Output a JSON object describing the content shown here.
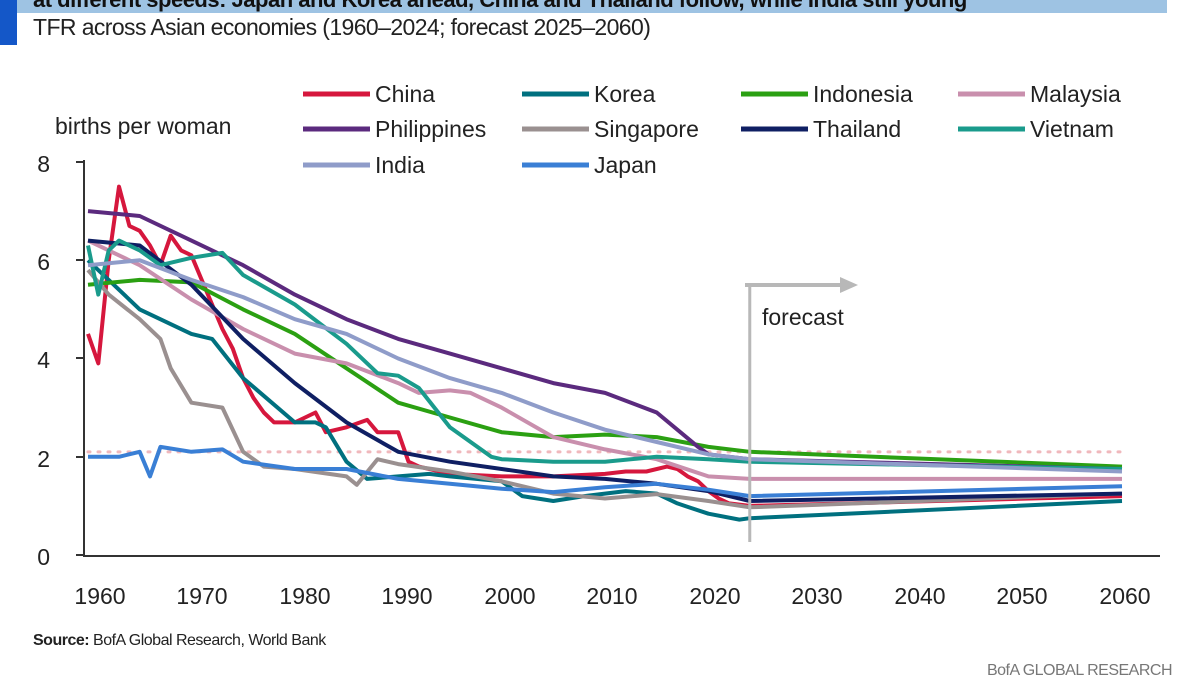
{
  "header": {
    "title": "at different speeds: Japan and Korea ahead, China and Thailand follow, while India still young",
    "subtitle": "TFR across Asian economies (1960–2024; forecast 2025–2060)"
  },
  "footer": {
    "source_label": "Source:",
    "source_text": " BofA Global Research, World Bank",
    "brand": "BofA GLOBAL RESEARCH"
  },
  "colors": {
    "accent_bar": "#1457c8",
    "title_band": "#9ec3e3"
  },
  "chart_data": {
    "type": "line",
    "ylabel": "births per woman",
    "xlim": [
      1960,
      2060
    ],
    "ylim": [
      0,
      8
    ],
    "x_ticks": [
      "1960",
      "1970",
      "1980",
      "1990",
      "2000",
      "2010",
      "2020",
      "2030",
      "2040",
      "2050",
      "2060"
    ],
    "y_ticks": [
      "0",
      "2",
      "4",
      "6",
      "8"
    ],
    "grid": false,
    "legend": "top",
    "annotation": {
      "text": "forecast",
      "x": 2024
    },
    "reference_line": {
      "y": 2.1,
      "style": "dotted",
      "color": "#f0b8bc"
    },
    "series": [
      {
        "name": "China",
        "color": "#d6173d",
        "points": [
          [
            1960,
            4.5
          ],
          [
            1961,
            3.9
          ],
          [
            1962,
            6.0
          ],
          [
            1963,
            7.5
          ],
          [
            1964,
            6.7
          ],
          [
            1965,
            6.6
          ],
          [
            1966,
            6.3
          ],
          [
            1967,
            5.9
          ],
          [
            1968,
            6.5
          ],
          [
            1969,
            6.2
          ],
          [
            1970,
            6.1
          ],
          [
            1971,
            5.6
          ],
          [
            1972,
            5.1
          ],
          [
            1973,
            4.6
          ],
          [
            1974,
            4.2
          ],
          [
            1975,
            3.6
          ],
          [
            1976,
            3.2
          ],
          [
            1977,
            2.9
          ],
          [
            1978,
            2.7
          ],
          [
            1980,
            2.7
          ],
          [
            1981,
            2.8
          ],
          [
            1982,
            2.9
          ],
          [
            1983,
            2.5
          ],
          [
            1985,
            2.6
          ],
          [
            1987,
            2.75
          ],
          [
            1988,
            2.5
          ],
          [
            1990,
            2.5
          ],
          [
            1991,
            1.9
          ],
          [
            1992,
            1.8
          ],
          [
            1995,
            1.65
          ],
          [
            2000,
            1.6
          ],
          [
            2005,
            1.6
          ],
          [
            2010,
            1.65
          ],
          [
            2012,
            1.7
          ],
          [
            2014,
            1.7
          ],
          [
            2016,
            1.8
          ],
          [
            2017,
            1.75
          ],
          [
            2018,
            1.6
          ],
          [
            2019,
            1.5
          ],
          [
            2020,
            1.3
          ],
          [
            2021,
            1.15
          ],
          [
            2022,
            1.05
          ],
          [
            2024,
            1.0
          ],
          [
            2060,
            1.2
          ]
        ]
      },
      {
        "name": "Korea",
        "color": "#00707f",
        "points": [
          [
            1960,
            6.0
          ],
          [
            1965,
            5.0
          ],
          [
            1970,
            4.5
          ],
          [
            1972,
            4.4
          ],
          [
            1975,
            3.6
          ],
          [
            1980,
            2.7
          ],
          [
            1982,
            2.7
          ],
          [
            1983,
            2.6
          ],
          [
            1985,
            1.9
          ],
          [
            1987,
            1.55
          ],
          [
            1990,
            1.6
          ],
          [
            1993,
            1.65
          ],
          [
            1995,
            1.6
          ],
          [
            2000,
            1.5
          ],
          [
            2002,
            1.2
          ],
          [
            2005,
            1.1
          ],
          [
            2008,
            1.2
          ],
          [
            2012,
            1.3
          ],
          [
            2015,
            1.25
          ],
          [
            2017,
            1.05
          ],
          [
            2018,
            0.98
          ],
          [
            2020,
            0.84
          ],
          [
            2023,
            0.72
          ],
          [
            2024,
            0.75
          ],
          [
            2060,
            1.1
          ]
        ]
      },
      {
        "name": "Indonesia",
        "color": "#2ba012",
        "points": [
          [
            1960,
            5.5
          ],
          [
            1965,
            5.6
          ],
          [
            1970,
            5.55
          ],
          [
            1975,
            5.0
          ],
          [
            1980,
            4.5
          ],
          [
            1985,
            3.8
          ],
          [
            1990,
            3.1
          ],
          [
            1995,
            2.8
          ],
          [
            2000,
            2.5
          ],
          [
            2005,
            2.4
          ],
          [
            2010,
            2.45
          ],
          [
            2015,
            2.4
          ],
          [
            2020,
            2.2
          ],
          [
            2024,
            2.1
          ],
          [
            2060,
            1.8
          ]
        ]
      },
      {
        "name": "Malaysia",
        "color": "#c98fad",
        "points": [
          [
            1960,
            6.4
          ],
          [
            1965,
            5.9
          ],
          [
            1970,
            5.2
          ],
          [
            1975,
            4.6
          ],
          [
            1980,
            4.1
          ],
          [
            1985,
            3.9
          ],
          [
            1990,
            3.5
          ],
          [
            1992,
            3.3
          ],
          [
            1995,
            3.35
          ],
          [
            1997,
            3.3
          ],
          [
            2000,
            3.0
          ],
          [
            2005,
            2.4
          ],
          [
            2010,
            2.15
          ],
          [
            2015,
            1.95
          ],
          [
            2020,
            1.6
          ],
          [
            2024,
            1.55
          ],
          [
            2060,
            1.55
          ]
        ]
      },
      {
        "name": "Philippines",
        "color": "#5b2a7e",
        "points": [
          [
            1960,
            7.0
          ],
          [
            1965,
            6.9
          ],
          [
            1970,
            6.4
          ],
          [
            1975,
            5.9
          ],
          [
            1980,
            5.3
          ],
          [
            1985,
            4.8
          ],
          [
            1990,
            4.4
          ],
          [
            1995,
            4.1
          ],
          [
            2000,
            3.8
          ],
          [
            2005,
            3.5
          ],
          [
            2010,
            3.3
          ],
          [
            2015,
            2.9
          ],
          [
            2019,
            2.2
          ],
          [
            2020,
            2.05
          ],
          [
            2024,
            1.95
          ],
          [
            2060,
            1.75
          ]
        ]
      },
      {
        "name": "Singapore",
        "color": "#9a9090",
        "points": [
          [
            1960,
            5.8
          ],
          [
            1962,
            5.3
          ],
          [
            1965,
            4.8
          ],
          [
            1967,
            4.4
          ],
          [
            1968,
            3.8
          ],
          [
            1970,
            3.1
          ],
          [
            1973,
            3.0
          ],
          [
            1975,
            2.1
          ],
          [
            1977,
            1.8
          ],
          [
            1980,
            1.75
          ],
          [
            1985,
            1.6
          ],
          [
            1986,
            1.43
          ],
          [
            1988,
            1.95
          ],
          [
            1990,
            1.85
          ],
          [
            1995,
            1.7
          ],
          [
            2000,
            1.5
          ],
          [
            2005,
            1.25
          ],
          [
            2010,
            1.15
          ],
          [
            2015,
            1.24
          ],
          [
            2020,
            1.1
          ],
          [
            2024,
            0.97
          ],
          [
            2060,
            1.25
          ]
        ]
      },
      {
        "name": "Thailand",
        "color": "#0f1f63",
        "points": [
          [
            1960,
            6.4
          ],
          [
            1965,
            6.3
          ],
          [
            1970,
            5.5
          ],
          [
            1975,
            4.4
          ],
          [
            1980,
            3.5
          ],
          [
            1985,
            2.7
          ],
          [
            1990,
            2.1
          ],
          [
            1995,
            1.9
          ],
          [
            2000,
            1.75
          ],
          [
            2005,
            1.6
          ],
          [
            2010,
            1.55
          ],
          [
            2015,
            1.45
          ],
          [
            2020,
            1.3
          ],
          [
            2024,
            1.1
          ],
          [
            2060,
            1.25
          ]
        ]
      },
      {
        "name": "Vietnam",
        "color": "#1a9b8c",
        "points": [
          [
            1960,
            6.3
          ],
          [
            1961,
            5.3
          ],
          [
            1962,
            6.2
          ],
          [
            1963,
            6.4
          ],
          [
            1965,
            6.2
          ],
          [
            1967,
            5.9
          ],
          [
            1970,
            6.05
          ],
          [
            1973,
            6.15
          ],
          [
            1975,
            5.7
          ],
          [
            1980,
            5.1
          ],
          [
            1985,
            4.3
          ],
          [
            1988,
            3.7
          ],
          [
            1990,
            3.65
          ],
          [
            1992,
            3.4
          ],
          [
            1995,
            2.6
          ],
          [
            1999,
            2.0
          ],
          [
            2000,
            1.95
          ],
          [
            2005,
            1.9
          ],
          [
            2010,
            1.9
          ],
          [
            2015,
            2.0
          ],
          [
            2020,
            1.95
          ],
          [
            2024,
            1.9
          ],
          [
            2060,
            1.75
          ]
        ]
      },
      {
        "name": "India",
        "color": "#8f9cc9",
        "points": [
          [
            1960,
            5.9
          ],
          [
            1965,
            6.0
          ],
          [
            1970,
            5.6
          ],
          [
            1975,
            5.25
          ],
          [
            1980,
            4.8
          ],
          [
            1985,
            4.5
          ],
          [
            1990,
            4.0
          ],
          [
            1995,
            3.6
          ],
          [
            2000,
            3.3
          ],
          [
            2005,
            2.9
          ],
          [
            2010,
            2.55
          ],
          [
            2015,
            2.3
          ],
          [
            2020,
            2.05
          ],
          [
            2024,
            1.95
          ],
          [
            2060,
            1.7
          ]
        ]
      },
      {
        "name": "Japan",
        "color": "#3a7fd5",
        "points": [
          [
            1960,
            2.0
          ],
          [
            1963,
            2.0
          ],
          [
            1965,
            2.1
          ],
          [
            1966,
            1.6
          ],
          [
            1967,
            2.2
          ],
          [
            1970,
            2.1
          ],
          [
            1973,
            2.15
          ],
          [
            1975,
            1.9
          ],
          [
            1980,
            1.75
          ],
          [
            1985,
            1.75
          ],
          [
            1990,
            1.55
          ],
          [
            1995,
            1.45
          ],
          [
            2000,
            1.35
          ],
          [
            2005,
            1.28
          ],
          [
            2010,
            1.38
          ],
          [
            2015,
            1.45
          ],
          [
            2020,
            1.33
          ],
          [
            2024,
            1.2
          ],
          [
            2060,
            1.4
          ]
        ]
      }
    ]
  }
}
